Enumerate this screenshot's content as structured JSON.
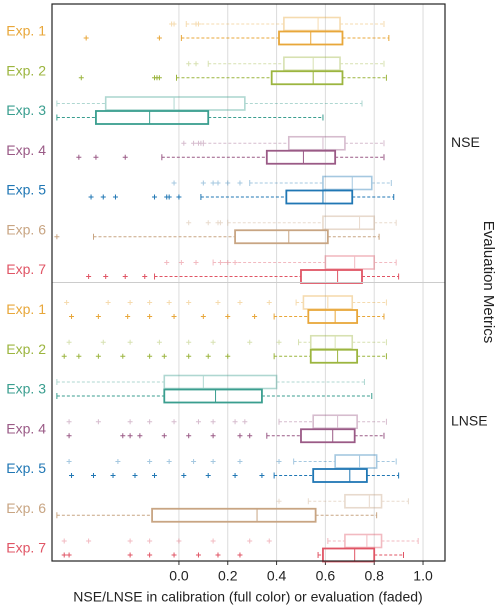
{
  "chart_data": {
    "type": "boxplot",
    "x_label": "NSE/LNSE in calibration (full color) or evaluation (faded)",
    "side_label": "Evaluation Metrics",
    "xlim": [
      -0.52,
      1.09
    ],
    "xticks": [
      {
        "value": 0,
        "label": "0.0"
      },
      0.2,
      0.4,
      0.6,
      0.8,
      {
        "value": 1,
        "label": "1.0"
      }
    ],
    "grid": true,
    "panels": [
      {
        "label": "NSE",
        "groups": [
          {
            "label": "Exp. 1",
            "color": "#e8a73a",
            "evaluation": {
              "whislo": 0.03,
              "q1": 0.43,
              "med": 0.57,
              "q3": 0.66,
              "whishi": 0.84,
              "fliers": [
                -0.03,
                -0.02,
                0.07,
                0.08
              ]
            },
            "calibration": {
              "whislo": 0.01,
              "q1": 0.41,
              "med": 0.54,
              "q3": 0.67,
              "whishi": 0.86,
              "fliers": [
                -0.38,
                -0.08
              ]
            }
          },
          {
            "label": "Exp. 2",
            "color": "#9cb53f",
            "evaluation": {
              "whislo": 0.12,
              "q1": 0.43,
              "med": 0.55,
              "q3": 0.66,
              "whishi": 0.84,
              "fliers": [
                0.04,
                0.07
              ]
            },
            "calibration": {
              "whislo": -0.01,
              "q1": 0.38,
              "med": 0.55,
              "q3": 0.67,
              "whishi": 0.85,
              "fliers": [
                -0.4,
                -0.1,
                -0.09,
                -0.08
              ]
            }
          },
          {
            "label": "Exp. 3",
            "color": "#3a9e8f",
            "evaluation": {
              "whislo": -0.5,
              "q1": -0.3,
              "med": -0.02,
              "q3": 0.27,
              "whishi": 0.75,
              "fliers": []
            },
            "calibration": {
              "whislo": -0.5,
              "q1": -0.34,
              "med": -0.12,
              "q3": 0.12,
              "whishi": 0.59,
              "fliers": []
            }
          },
          {
            "label": "Exp. 4",
            "color": "#9a5a86",
            "evaluation": {
              "whislo": 0.1,
              "q1": 0.45,
              "med": 0.59,
              "q3": 0.68,
              "whishi": 0.84,
              "fliers": [
                0.02,
                0.06,
                0.08,
                0.09
              ]
            },
            "calibration": {
              "whislo": -0.07,
              "q1": 0.36,
              "med": 0.51,
              "q3": 0.64,
              "whishi": 0.84,
              "fliers": [
                -0.41,
                -0.34,
                -0.22
              ]
            }
          },
          {
            "label": "Exp. 5",
            "color": "#2077b4",
            "evaluation": {
              "whislo": 0.29,
              "q1": 0.59,
              "med": 0.71,
              "q3": 0.79,
              "whishi": 0.87,
              "fliers": [
                -0.02,
                0.1,
                0.14,
                0.16,
                0.2,
                0.25
              ]
            },
            "calibration": {
              "whislo": 0.09,
              "q1": 0.44,
              "med": 0.59,
              "q3": 0.71,
              "whishi": 0.88,
              "fliers": [
                -0.36,
                -0.31,
                -0.26,
                -0.1,
                -0.05,
                -0.04,
                0.0
              ]
            }
          },
          {
            "label": "Exp. 6",
            "color": "#c8a583",
            "evaluation": {
              "whislo": 0.2,
              "q1": 0.59,
              "med": 0.74,
              "q3": 0.8,
              "whishi": 0.89,
              "fliers": [
                0.04,
                0.12,
                0.16,
                0.17
              ]
            },
            "calibration": {
              "whislo": -0.35,
              "q1": 0.23,
              "med": 0.45,
              "q3": 0.61,
              "whishi": 0.82,
              "fliers": [
                -0.5
              ]
            }
          },
          {
            "label": "Exp. 7",
            "color": "#e05565",
            "evaluation": {
              "whislo": 0.14,
              "q1": 0.6,
              "med": 0.72,
              "q3": 0.8,
              "whishi": 0.89,
              "fliers": [
                -0.05,
                0.01,
                0.07,
                0.17,
                0.2,
                0.23
              ]
            },
            "calibration": {
              "whislo": -0.1,
              "q1": 0.5,
              "med": 0.65,
              "q3": 0.75,
              "whishi": 0.9,
              "fliers": [
                -0.37,
                -0.3,
                -0.22,
                -0.14
              ]
            }
          }
        ]
      },
      {
        "label": "LNSE",
        "groups": [
          {
            "label": "Exp. 1",
            "color": "#e8a73a",
            "evaluation": {
              "whislo": 0.48,
              "q1": 0.51,
              "med": 0.61,
              "q3": 0.71,
              "whishi": 0.85,
              "fliers": [
                -0.46,
                -0.29,
                -0.2,
                -0.12,
                -0.04,
                0.04,
                0.16,
                0.25,
                0.37
              ]
            },
            "calibration": {
              "whislo": 0.39,
              "q1": 0.53,
              "med": 0.64,
              "q3": 0.73,
              "whishi": 0.84,
              "fliers": [
                -0.44,
                -0.33,
                -0.21,
                -0.12,
                -0.02,
                0.1,
                0.2,
                0.31
              ]
            }
          },
          {
            "label": "Exp. 2",
            "color": "#9cb53f",
            "evaluation": {
              "whislo": 0.49,
              "q1": 0.54,
              "med": 0.64,
              "q3": 0.71,
              "whishi": 0.85,
              "fliers": [
                -0.45,
                -0.31,
                -0.2,
                -0.08,
                0.04,
                0.14,
                0.29,
                0.41
              ]
            },
            "calibration": {
              "whislo": 0.39,
              "q1": 0.54,
              "med": 0.65,
              "q3": 0.73,
              "whishi": 0.85,
              "fliers": [
                -0.47,
                -0.41,
                -0.33,
                -0.23,
                -0.12,
                -0.06,
                0.04,
                0.12,
                0.2
              ]
            }
          },
          {
            "label": "Exp. 3",
            "color": "#3a9e8f",
            "evaluation": {
              "whislo": -0.5,
              "q1": -0.06,
              "med": 0.1,
              "q3": 0.4,
              "whishi": 0.76,
              "fliers": []
            },
            "calibration": {
              "whislo": -0.5,
              "q1": -0.06,
              "med": 0.15,
              "q3": 0.34,
              "whishi": 0.79,
              "fliers": []
            }
          },
          {
            "label": "Exp. 4",
            "color": "#9a5a86",
            "evaluation": {
              "whislo": 0.41,
              "q1": 0.55,
              "med": 0.65,
              "q3": 0.73,
              "whishi": 0.85,
              "fliers": [
                -0.45,
                -0.33,
                -0.2,
                -0.12,
                -0.02,
                0.08,
                0.14,
                0.23,
                0.27
              ]
            },
            "calibration": {
              "whislo": 0.36,
              "q1": 0.5,
              "med": 0.63,
              "q3": 0.72,
              "whishi": 0.84,
              "fliers": [
                -0.45,
                -0.23,
                -0.2,
                -0.16,
                -0.06,
                0.04,
                0.14,
                0.25,
                0.29
              ]
            }
          },
          {
            "label": "Exp. 5",
            "color": "#2077b4",
            "evaluation": {
              "whislo": 0.47,
              "q1": 0.64,
              "med": 0.74,
              "q3": 0.81,
              "whishi": 0.89,
              "fliers": [
                -0.45,
                -0.25,
                -0.12,
                -0.04,
                0.06,
                0.14,
                0.25,
                0.41
              ]
            },
            "calibration": {
              "whislo": 0.39,
              "q1": 0.55,
              "med": 0.7,
              "q3": 0.77,
              "whishi": 0.9,
              "fliers": [
                -0.44,
                -0.35,
                -0.27,
                -0.18,
                -0.1,
                0.02,
                0.12,
                0.23,
                0.34
              ]
            }
          },
          {
            "label": "Exp. 6",
            "color": "#c8a583",
            "evaluation": {
              "whislo": 0.53,
              "q1": 0.68,
              "med": 0.78,
              "q3": 0.83,
              "whishi": 0.94,
              "fliers": [
                0.41
              ]
            },
            "calibration": {
              "whislo": -0.5,
              "q1": -0.11,
              "med": 0.32,
              "q3": 0.56,
              "whishi": 0.81,
              "fliers": []
            }
          },
          {
            "label": "Exp. 7",
            "color": "#e05565",
            "evaluation": {
              "whislo": 0.61,
              "q1": 0.68,
              "med": 0.77,
              "q3": 0.83,
              "whishi": 0.98,
              "fliers": [
                -0.47,
                -0.37,
                -0.2,
                -0.12,
                0.0,
                0.14,
                0.29,
                0.37
              ]
            },
            "calibration": {
              "whislo": 0.57,
              "q1": 0.59,
              "med": 0.72,
              "q3": 0.8,
              "whishi": 0.92,
              "fliers": [
                -0.47,
                -0.45,
                -0.2,
                -0.12,
                -0.02,
                0.08,
                0.16,
                0.25
              ]
            }
          }
        ]
      }
    ]
  }
}
